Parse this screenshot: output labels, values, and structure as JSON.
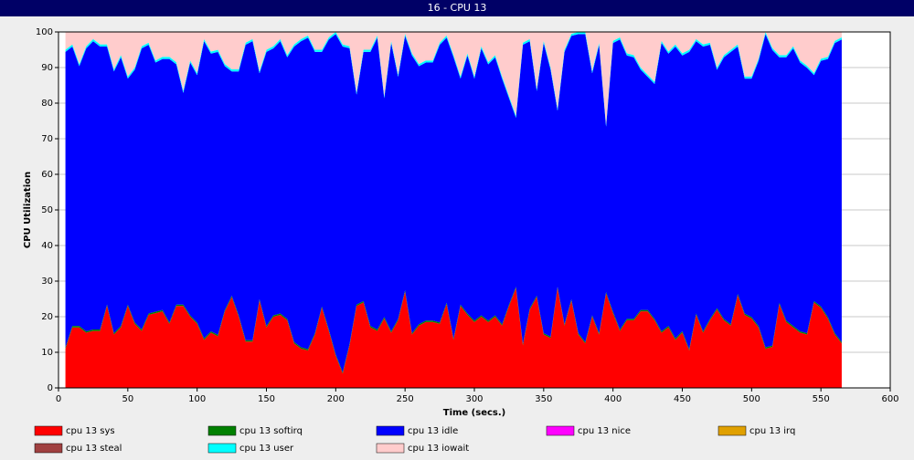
{
  "chart_data": {
    "type": "stacked_area",
    "title": "16 - CPU 13",
    "xlabel": "Time (secs.)",
    "ylabel": "CPU Utilization",
    "x": [
      5,
      10,
      15,
      20,
      25,
      30,
      35,
      40,
      45,
      50,
      55,
      60,
      65,
      70,
      75,
      80,
      85,
      90,
      95,
      100,
      105,
      110,
      115,
      120,
      125,
      130,
      135,
      140,
      145,
      150,
      155,
      160,
      165,
      170,
      175,
      180,
      185,
      190,
      195,
      200,
      205,
      210,
      215,
      220,
      225,
      230,
      235,
      240,
      245,
      250,
      255,
      260,
      265,
      270,
      275,
      280,
      285,
      290,
      295,
      300,
      305,
      310,
      315,
      320,
      325,
      330,
      335,
      340,
      345,
      350,
      355,
      360,
      365,
      370,
      375,
      380,
      385,
      390,
      395,
      400,
      405,
      410,
      415,
      420,
      425,
      430,
      435,
      440,
      445,
      450,
      455,
      460,
      465,
      470,
      475,
      480,
      485,
      490,
      495,
      500,
      505,
      510,
      515,
      520,
      525,
      530,
      535,
      540,
      545,
      550,
      555,
      560,
      565
    ],
    "series": [
      {
        "name": "cpu 13 sys",
        "color": "#ff0000",
        "values": [
          11,
          17,
          17,
          15.5,
          16,
          16,
          23,
          15,
          17,
          23,
          18,
          16,
          20.5,
          21,
          21.5,
          18,
          23,
          23,
          20,
          18,
          13.5,
          15.5,
          14.5,
          21.5,
          25.5,
          20,
          13,
          13,
          24.5,
          17,
          20,
          20.5,
          19,
          12.5,
          11,
          10.5,
          15,
          22.5,
          16,
          9,
          4,
          12,
          23,
          24,
          17,
          16,
          19.5,
          15.5,
          19,
          27,
          15,
          17.5,
          18.5,
          18.5,
          18,
          23.5,
          13.5,
          23,
          20.5,
          18.5,
          20,
          18.5,
          20,
          17.5,
          23,
          28,
          12,
          22,
          25.5,
          15,
          14,
          28,
          17.5,
          24.5,
          15,
          12.5,
          20,
          15,
          26.5,
          21,
          16,
          19,
          19,
          21.5,
          21.5,
          19,
          15.5,
          17,
          13.5,
          15.5,
          10.5,
          20.5,
          15.5,
          19,
          22,
          19,
          17.5,
          26,
          20.5,
          19.5,
          17,
          11,
          11.5,
          23.5,
          18.5,
          17,
          15.5,
          15,
          24,
          22.5,
          19.5,
          15,
          12.5
        ]
      },
      {
        "name": "cpu 13 softirq",
        "color": "#008000",
        "values": [
          0.4,
          0.4,
          0.4,
          0.4,
          0.4,
          0.4,
          0.4,
          0.4,
          0.4,
          0.4,
          0.4,
          0.4,
          0.4,
          0.4,
          0.4,
          0.4,
          0.4,
          0.4,
          0.4,
          0.4,
          0.4,
          0.4,
          0.4,
          0.4,
          0.4,
          0.4,
          0.4,
          0.4,
          0.4,
          0.4,
          0.4,
          0.4,
          0.4,
          0.4,
          0.4,
          0.4,
          0.4,
          0.4,
          0.4,
          0.4,
          0.4,
          0.4,
          0.4,
          0.4,
          0.4,
          0.4,
          0.4,
          0.4,
          0.4,
          0.4,
          0.4,
          0.4,
          0.4,
          0.4,
          0.4,
          0.4,
          0.4,
          0.4,
          0.4,
          0.4,
          0.4,
          0.4,
          0.4,
          0.4,
          0.4,
          0.4,
          0.4,
          0.4,
          0.4,
          0.4,
          0.4,
          0.4,
          0.4,
          0.4,
          0.4,
          0.4,
          0.4,
          0.4,
          0.4,
          0.4,
          0.4,
          0.4,
          0.4,
          0.4,
          0.4,
          0.4,
          0.4,
          0.4,
          0.4,
          0.4,
          0.4,
          0.4,
          0.4,
          0.4,
          0.4,
          0.4,
          0.4,
          0.4,
          0.4,
          0.4,
          0.4,
          0.4,
          0.4,
          0.4,
          0.4,
          0.4,
          0.4,
          0.4,
          0.4,
          0.4,
          0.4,
          0.4,
          0.4
        ]
      },
      {
        "name": "cpu 13 idle",
        "color": "#0000ff",
        "values": [
          83,
          78.5,
          73,
          79.5,
          81,
          79.5,
          72.5,
          73.5,
          75.5,
          63.5,
          71,
          79,
          75.5,
          70,
          70.5,
          74,
          67.5,
          59.5,
          71,
          69.5,
          83.5,
          78,
          79.5,
          68.5,
          63,
          68.5,
          83,
          84,
          63.5,
          77,
          75,
          76.5,
          73.5,
          83,
          86,
          87.5,
          79,
          71.5,
          81.5,
          90,
          91.5,
          83,
          59,
          70,
          77,
          82,
          61.5,
          81,
          68,
          71.5,
          78,
          72.5,
          72.5,
          72.5,
          78,
          74.5,
          79,
          63.5,
          72.5,
          68,
          75,
          72,
          72.5,
          69,
          58,
          47.5,
          84,
          75,
          57.5,
          81.5,
          75,
          49.5,
          76.5,
          74,
          84,
          86.5,
          68,
          81,
          46.5,
          75.5,
          81.5,
          74,
          73.5,
          67.5,
          65.5,
          66,
          81,
          76.5,
          82,
          77.5,
          83.5,
          76.5,
          80,
          77,
          67,
          73.5,
          76.5,
          69.5,
          66,
          67,
          74.5,
          88,
          83,
          69,
          74,
          78,
          75.5,
          74.5,
          63.5,
          69,
          72.5,
          81.5,
          85
        ]
      },
      {
        "name": "cpu 13 nice",
        "color": "#ff00ff",
        "values": [
          0,
          0,
          0,
          0,
          0,
          0,
          0,
          0,
          0,
          0,
          0,
          0,
          0,
          0,
          0,
          0,
          0,
          0,
          0,
          0,
          0,
          0,
          0,
          0,
          0,
          0,
          0,
          0,
          0,
          0,
          0,
          0,
          0,
          0,
          0,
          0,
          0,
          0,
          0,
          0,
          0,
          0,
          0,
          0,
          0,
          0,
          0,
          0,
          0,
          0,
          0,
          0,
          0,
          0,
          0,
          0,
          0,
          0,
          0,
          0,
          0,
          0,
          0,
          0,
          0,
          0,
          0,
          0,
          0,
          0,
          0,
          0,
          0,
          0,
          0,
          0,
          0,
          0,
          0,
          0,
          0,
          0,
          0,
          0,
          0,
          0,
          0,
          0,
          0,
          0,
          0,
          0,
          0,
          0,
          0,
          0,
          0,
          0,
          0,
          0,
          0,
          0,
          0,
          0,
          0,
          0,
          0,
          0,
          0,
          0,
          0,
          0,
          0
        ]
      },
      {
        "name": "cpu 13 irq",
        "color": "#e0a000",
        "values": [
          0,
          0,
          0,
          0,
          0,
          0,
          0,
          0,
          0,
          0,
          0,
          0,
          0,
          0,
          0,
          0,
          0,
          0,
          0,
          0,
          0,
          0,
          0,
          0,
          0,
          0,
          0,
          0,
          0,
          0,
          0,
          0,
          0,
          0,
          0,
          0,
          0,
          0,
          0,
          0,
          0,
          0,
          0,
          0,
          0,
          0,
          0,
          0,
          0,
          0,
          0,
          0,
          0,
          0,
          0,
          0,
          0,
          0,
          0,
          0,
          0,
          0,
          0,
          0,
          0,
          0,
          0,
          0,
          0,
          0,
          0,
          0,
          0,
          0,
          0,
          0,
          0,
          0,
          0,
          0,
          0,
          0,
          0,
          0,
          0,
          0,
          0,
          0,
          0,
          0,
          0,
          0,
          0,
          0,
          0,
          0,
          0,
          0,
          0,
          0,
          0,
          0,
          0,
          0,
          0,
          0,
          0,
          0,
          0,
          0,
          0,
          0,
          0
        ]
      },
      {
        "name": "cpu 13 steal",
        "color": "#a04040",
        "values": [
          0,
          0,
          0,
          0,
          0,
          0,
          0,
          0,
          0,
          0,
          0,
          0,
          0,
          0,
          0,
          0,
          0,
          0,
          0,
          0,
          0,
          0,
          0,
          0,
          0,
          0,
          0,
          0,
          0,
          0,
          0,
          0,
          0,
          0,
          0,
          0,
          0,
          0,
          0,
          0,
          0,
          0,
          0,
          0,
          0,
          0,
          0,
          0,
          0,
          0,
          0,
          0,
          0,
          0,
          0,
          0,
          0,
          0,
          0,
          0,
          0,
          0,
          0,
          0,
          0,
          0,
          0,
          0,
          0,
          0,
          0,
          0,
          0,
          0,
          0,
          0,
          0,
          0,
          0,
          0,
          0,
          0,
          0,
          0,
          0,
          0,
          0,
          0,
          0,
          0,
          0,
          0,
          0,
          0,
          0,
          0,
          0,
          0,
          0,
          0,
          0,
          0,
          0,
          0,
          0,
          0,
          0,
          0,
          0,
          0,
          0,
          0,
          0
        ]
      },
      {
        "name": "cpu 13 user",
        "color": "#00ffff",
        "values": [
          0.6,
          0.6,
          0.6,
          0.6,
          0.6,
          0.6,
          0.6,
          0.6,
          0.6,
          0.6,
          0.6,
          0.6,
          0.6,
          0.6,
          0.6,
          0.6,
          0.6,
          0.6,
          0.6,
          0.6,
          0.6,
          0.6,
          0.6,
          0.6,
          0.6,
          0.6,
          0.6,
          0.6,
          0.6,
          0.6,
          0.6,
          0.6,
          0.6,
          0.6,
          0.6,
          0.6,
          0.6,
          0.6,
          0.6,
          0.6,
          0.6,
          0.6,
          0.6,
          0.6,
          0.6,
          0.6,
          0.6,
          0.6,
          0.6,
          0.6,
          0.6,
          0.6,
          0.6,
          0.6,
          0.6,
          0.6,
          0.6,
          0.6,
          0.6,
          0.6,
          0.6,
          0.6,
          0.6,
          0.6,
          0.6,
          0.6,
          0.6,
          0.6,
          0.6,
          0.6,
          0.6,
          0.6,
          0.6,
          0.6,
          0.6,
          0.6,
          0.6,
          0.6,
          0.6,
          0.6,
          0.6,
          0.6,
          0.6,
          0.6,
          0.6,
          0.6,
          0.6,
          0.6,
          0.6,
          0.6,
          0.6,
          0.6,
          0.6,
          0.6,
          0.6,
          0.6,
          0.6,
          0.6,
          0.6,
          0.6,
          0.6,
          0.6,
          0.6,
          0.6,
          0.6,
          0.6,
          0.6,
          0.6,
          0.6,
          0.6,
          0.6,
          0.6,
          0.6
        ]
      },
      {
        "name": "cpu 13 iowait",
        "color": "#ffcccc",
        "values": [
          5,
          3.5,
          9,
          4,
          2,
          3.5,
          3.5,
          10.5,
          6.5,
          12.5,
          10,
          4,
          3,
          8,
          7,
          7,
          8.5,
          16.5,
          8,
          11.5,
          2,
          5.5,
          5,
          9,
          10.5,
          10.5,
          3,
          2,
          11,
          5,
          4,
          2,
          6.5,
          3.5,
          2,
          1,
          5,
          5,
          1.5,
          0,
          3.5,
          4,
          17,
          5,
          5,
          1,
          18,
          2.5,
          12,
          0.5,
          6,
          9,
          8,
          8,
          3,
          1,
          6.5,
          12.5,
          6,
          12.5,
          4,
          8.5,
          6.5,
          12.5,
          18,
          23.5,
          3,
          2,
          16,
          2.5,
          10,
          21.5,
          5,
          0.5,
          0,
          0,
          11,
          3,
          26,
          2.5,
          1.5,
          6,
          6.5,
          10,
          12,
          14,
          2.5,
          5.5,
          3.5,
          6,
          5,
          2,
          3.5,
          3,
          10,
          6.5,
          5,
          3.5,
          12.5,
          12.5,
          7.5,
          0,
          4.5,
          6.5,
          6.5,
          4,
          8,
          9.5,
          11.5,
          7.5,
          7,
          2.5,
          1.5
        ]
      }
    ],
    "xlim": [
      0,
      600
    ],
    "xticks": [
      0,
      50,
      100,
      150,
      200,
      250,
      300,
      350,
      400,
      450,
      500,
      550,
      600
    ],
    "ylim": [
      0,
      100
    ],
    "yticks": [
      0,
      10,
      20,
      30,
      40,
      50,
      60,
      70,
      80,
      90,
      100
    ],
    "grid": true,
    "legend": "bottom"
  }
}
